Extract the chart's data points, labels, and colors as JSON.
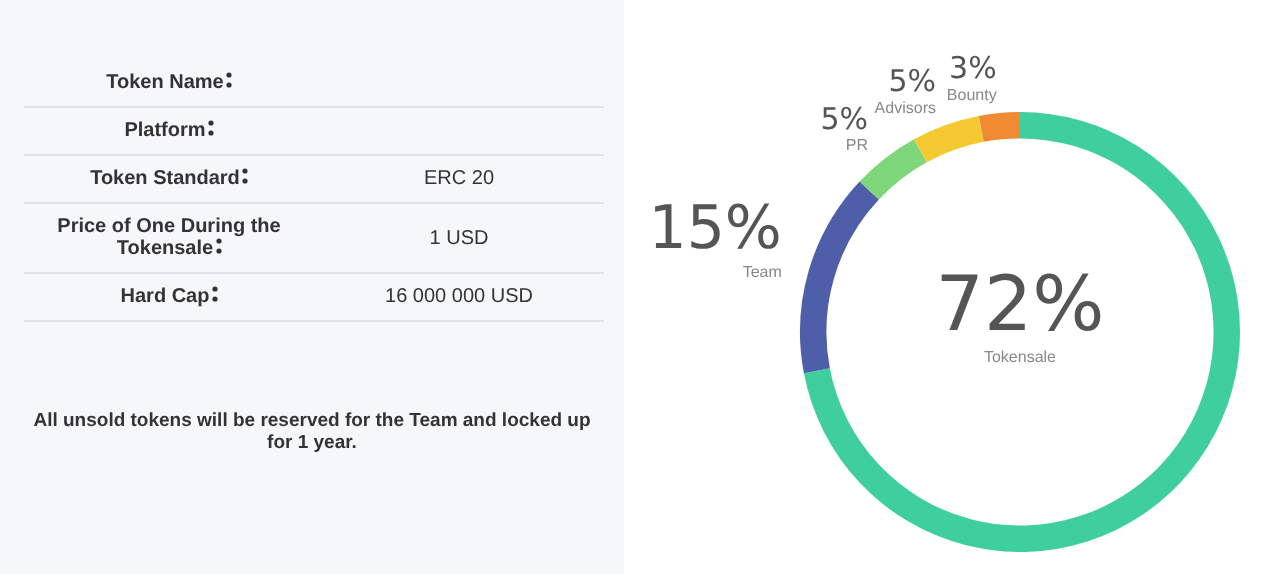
{
  "chart_data": [
    {
      "type": "other",
      "categories": [
        "Token Name",
        "Platform",
        "Token Standard",
        "Price of One During the Tokensale",
        "Hard Cap"
      ],
      "value_labels": [
        null,
        null,
        "ERC 20",
        "1 USD",
        "16 000 000 USD"
      ],
      "annotations": [
        "All unsold tokens will be reserved for the Team and locked up for 1 year."
      ]
    },
    {
      "type": "donut",
      "categories": [
        "Tokensale",
        "Team",
        "PR",
        "Advisors",
        "Bounty"
      ],
      "values": [
        72,
        15,
        5,
        5,
        3
      ],
      "value_labels": [
        "72%",
        "15%",
        "5%",
        "5%",
        "3%"
      ],
      "colors": [
        "#3fcf9f",
        "#4f5ea8",
        "#7fd77c",
        "#f4c931",
        "#f08b34"
      ],
      "legend": false
    }
  ]
}
